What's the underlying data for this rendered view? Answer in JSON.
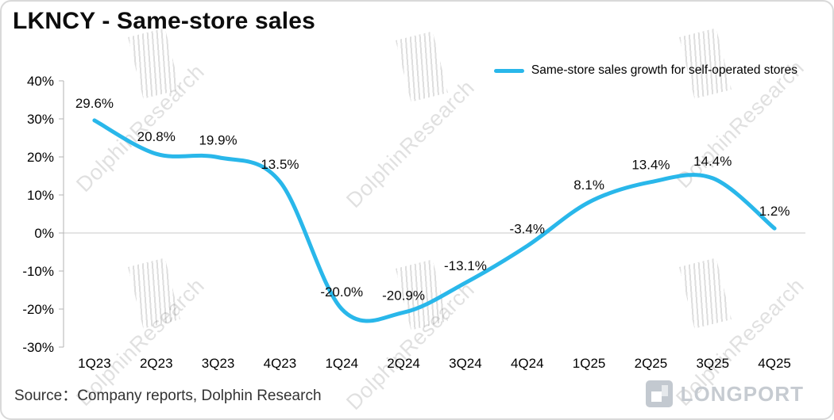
{
  "header": {
    "title": "LKNCY - Same-store sales"
  },
  "legend": {
    "label": "Same-store sales growth for self-operated stores"
  },
  "source": {
    "text": "Source：Company reports, Dolphin Research"
  },
  "watermark": {
    "text": "DolphinResearch"
  },
  "logo": {
    "text": "LONGPORT",
    "icon": "longport-square-mark"
  },
  "colors": {
    "line": "#29b7ea",
    "zero_line": "#c9c9c9",
    "axis": "#b3b3b3",
    "watermark": "rgba(0,0,0,0.12)"
  },
  "chart_data": {
    "type": "line",
    "title": "LKNCY - Same-store sales",
    "categories": [
      "1Q23",
      "2Q23",
      "3Q23",
      "4Q23",
      "1Q24",
      "2Q24",
      "3Q24",
      "4Q24",
      "1Q25",
      "2Q25",
      "3Q25",
      "4Q25"
    ],
    "series": [
      {
        "name": "Same-store sales growth for self-operated stores",
        "values": [
          29.6,
          20.8,
          19.9,
          13.5,
          -20.0,
          -20.9,
          -13.1,
          -3.4,
          8.1,
          13.4,
          14.4,
          1.2
        ]
      }
    ],
    "data_labels": [
      "29.6%",
      "20.8%",
      "19.9%",
      "13.5%",
      "-20.0%",
      "-20.9%",
      "-13.1%",
      "-3.4%",
      "8.1%",
      "13.4%",
      "14.4%",
      "1.2%"
    ],
    "ylabel_ticks": [
      "40%",
      "30%",
      "20%",
      "10%",
      "0%",
      "-10%",
      "-20%",
      "-30%"
    ],
    "ylim": [
      -30,
      40
    ],
    "y_tick_step": 10,
    "grid": "zero-line-only",
    "legend_position": "top-right",
    "line_color": "#29b7ea",
    "line_style": "smooth"
  }
}
